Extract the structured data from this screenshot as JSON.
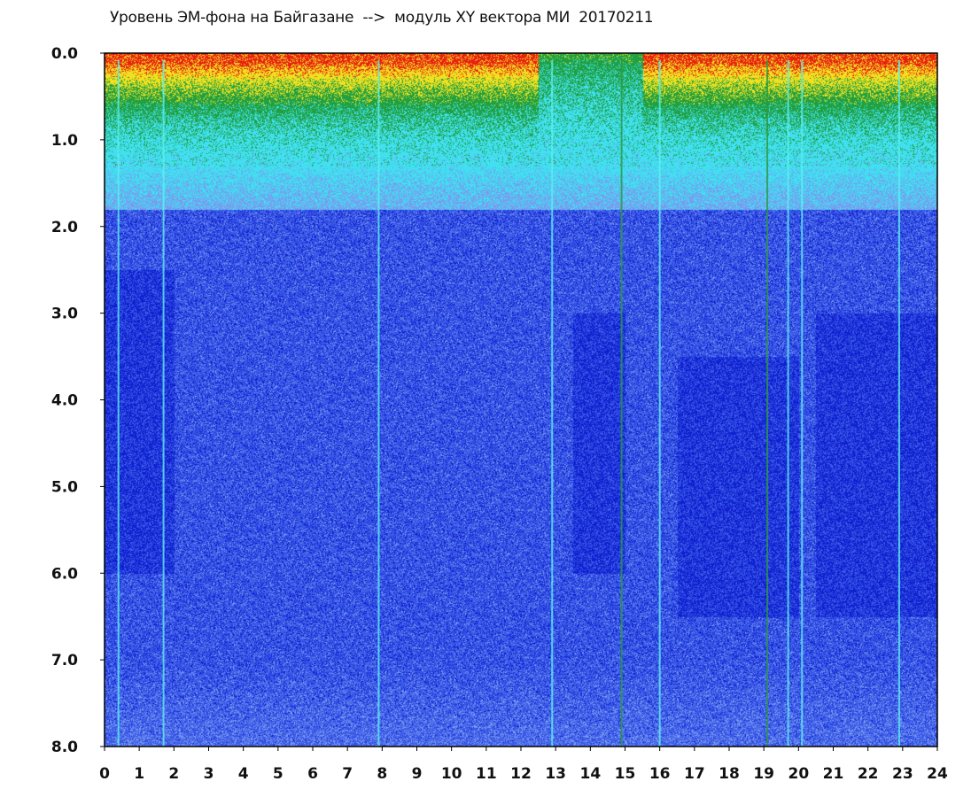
{
  "chart_data": {
    "type": "heatmap",
    "title": "Уровень ЭМ-фона на Байгазане  -->  модуль XY вектора МИ  20170211",
    "xlabel": "",
    "ylabel": "",
    "xlim": [
      0,
      24
    ],
    "ylim": [
      8.0,
      0.0
    ],
    "y_axis_inverted": true,
    "x_ticks": [
      "0",
      "1",
      "2",
      "3",
      "4",
      "5",
      "6",
      "7",
      "8",
      "9",
      "10",
      "11",
      "12",
      "13",
      "14",
      "15",
      "16",
      "17",
      "18",
      "19",
      "20",
      "21",
      "22",
      "23",
      "24"
    ],
    "y_ticks": [
      "0.0",
      "1.0",
      "2.0",
      "3.0",
      "4.0",
      "5.0",
      "6.0",
      "7.0",
      "8.0"
    ],
    "grid": false,
    "colormap": [
      "#1020d0",
      "#3a5ae8",
      "#7a9af0",
      "#40e0f0",
      "#20a040",
      "#f0e020",
      "#e82010"
    ],
    "background_color": "#ffffff",
    "high_activity_band_depth": [
      0.0,
      1.3
    ],
    "high_activity_hours": [
      [
        0,
        12.5
      ],
      [
        15.5,
        24
      ]
    ],
    "vertical_streak_hours": [
      0.4,
      1.7,
      7.9,
      12.9,
      14.9,
      16.0,
      19.1,
      19.7,
      20.1,
      22.9
    ]
  }
}
